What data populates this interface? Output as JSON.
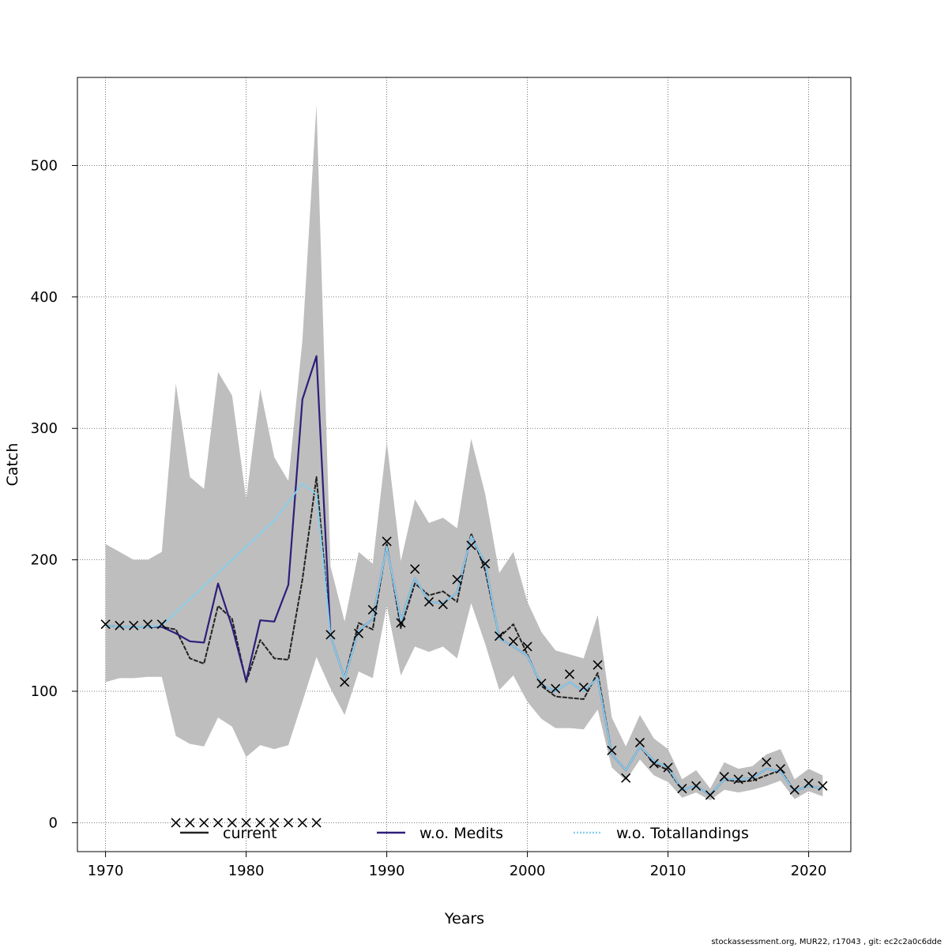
{
  "chart_data": {
    "type": "line",
    "xlabel": "Years",
    "ylabel": "Catch",
    "xlim": [
      1968,
      2023
    ],
    "ylim": [
      -22,
      567
    ],
    "x_ticks": [
      1970,
      1980,
      1990,
      2000,
      2010,
      2020
    ],
    "y_ticks": [
      0,
      100,
      200,
      300,
      400,
      500
    ],
    "grid": true,
    "legend_position": "bottom",
    "years": [
      1970,
      1971,
      1972,
      1973,
      1974,
      1975,
      1976,
      1977,
      1978,
      1979,
      1980,
      1981,
      1982,
      1983,
      1984,
      1985,
      1986,
      1987,
      1988,
      1989,
      1990,
      1991,
      1992,
      1993,
      1994,
      1995,
      1996,
      1997,
      1998,
      1999,
      2000,
      2001,
      2002,
      2003,
      2004,
      2005,
      2006,
      2007,
      2008,
      2009,
      2010,
      2011,
      2012,
      2013,
      2014,
      2015,
      2016,
      2017,
      2018,
      2019,
      2020,
      2021
    ],
    "band": {
      "upper": [
        212,
        206,
        200,
        200,
        206,
        334,
        263,
        254,
        343,
        325,
        246,
        330,
        278,
        260,
        367,
        546,
        195,
        153,
        206,
        197,
        290,
        199,
        246,
        228,
        232,
        224,
        292,
        250,
        190,
        206,
        168,
        145,
        131,
        128,
        125,
        158,
        80,
        58,
        82,
        64,
        56,
        33,
        40,
        26,
        46,
        41,
        43,
        52,
        56,
        33,
        41,
        36
      ],
      "lower": [
        107,
        110,
        110,
        111,
        111,
        66,
        60,
        58,
        80,
        73,
        50,
        59,
        56,
        59,
        92,
        126,
        102,
        82,
        115,
        110,
        165,
        112,
        134,
        130,
        134,
        125,
        167,
        136,
        101,
        112,
        92,
        79,
        72,
        72,
        71,
        86,
        42,
        32,
        48,
        36,
        31,
        19,
        23,
        17,
        25,
        23,
        25,
        28,
        32,
        18,
        24,
        20
      ]
    },
    "series": [
      {
        "name": "current",
        "color": "#222222",
        "values": [
          150,
          149,
          149,
          149,
          149,
          147,
          125,
          121,
          165,
          155,
          107,
          139,
          125,
          124,
          185,
          263,
          142,
          110,
          152,
          147,
          212,
          148,
          182,
          173,
          176,
          168,
          220,
          192,
          141,
          151,
          128,
          104,
          96,
          95,
          94,
          114,
          52,
          40,
          58,
          45,
          40,
          25,
          28,
          21,
          33,
          31,
          32,
          36,
          40,
          24,
          28,
          26
        ]
      },
      {
        "name": "w.o. Medits",
        "color": "#2b1f7a",
        "values": [
          150,
          149,
          149,
          149,
          149,
          144,
          138,
          137,
          182,
          149,
          108,
          154,
          153,
          181,
          322,
          355,
          142,
          110,
          146,
          155,
          210,
          154,
          186,
          168,
          167,
          175,
          218,
          197,
          140,
          134,
          127,
          105,
          100,
          107,
          100,
          110,
          52,
          40,
          58,
          47,
          42,
          25,
          28,
          21,
          33,
          33,
          34,
          41,
          39,
          24,
          28,
          26
        ]
      },
      {
        "name": "w.o. Totallandings",
        "color": "#87ceeb",
        "values": [
          150,
          149,
          149,
          149,
          150,
          160,
          170,
          180,
          190,
          200,
          210,
          220,
          230,
          244,
          258,
          250,
          142,
          110,
          146,
          155,
          210,
          154,
          186,
          168,
          167,
          175,
          218,
          197,
          140,
          134,
          127,
          105,
          100,
          107,
          100,
          110,
          52,
          40,
          58,
          47,
          42,
          25,
          28,
          21,
          33,
          33,
          34,
          41,
          39,
          24,
          28,
          26
        ]
      }
    ],
    "observations": {
      "x": [
        1970,
        1971,
        1972,
        1973,
        1974,
        1975,
        1976,
        1977,
        1978,
        1979,
        1980,
        1981,
        1982,
        1983,
        1984,
        1985,
        1986,
        1987,
        1988,
        1989,
        1990,
        1991,
        1992,
        1993,
        1994,
        1995,
        1996,
        1997,
        1998,
        1999,
        2000,
        2001,
        2002,
        2003,
        2004,
        2005,
        2006,
        2007,
        2008,
        2009,
        2010,
        2011,
        2012,
        2013,
        2014,
        2015,
        2016,
        2017,
        2018,
        2019,
        2020,
        2021
      ],
      "y": [
        151,
        150,
        150,
        151,
        151,
        0,
        0,
        0,
        0,
        0,
        0,
        0,
        0,
        0,
        0,
        0,
        143,
        107,
        144,
        162,
        214,
        152,
        193,
        168,
        166,
        185,
        211,
        197,
        142,
        138,
        134,
        106,
        102,
        113,
        103,
        120,
        55,
        34,
        61,
        45,
        42,
        26,
        28,
        21,
        35,
        33,
        35,
        46,
        41,
        25,
        30,
        28
      ]
    }
  },
  "footer": "stockassessment.org, MUR22, r17043 , git: ec2c2a0c6dde"
}
